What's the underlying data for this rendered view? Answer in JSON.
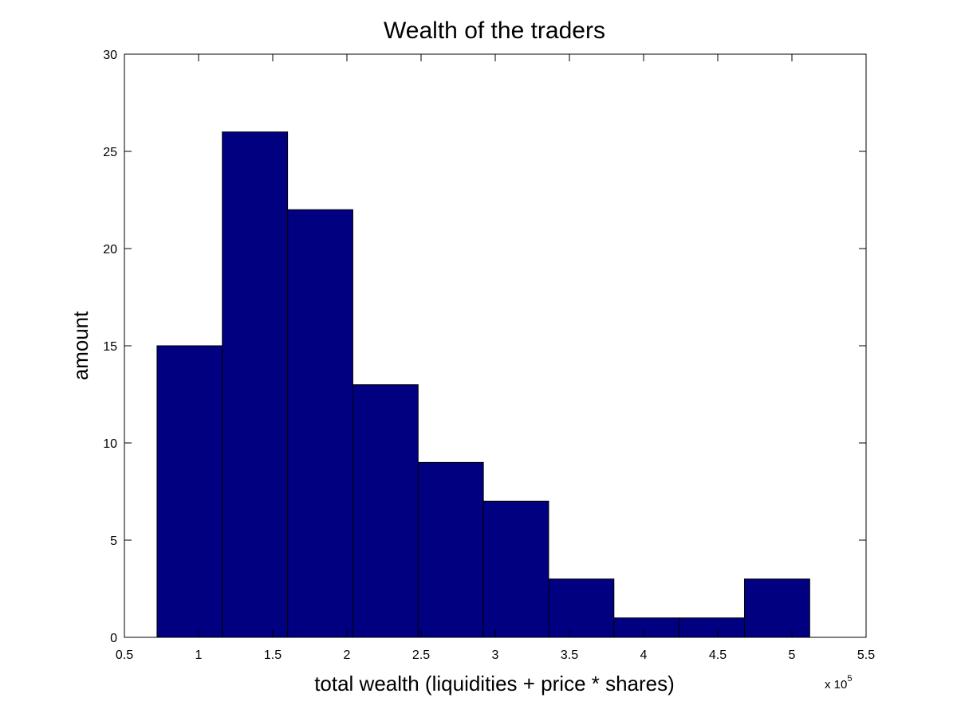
{
  "chart_data": {
    "type": "bar",
    "title": "Wealth of the traders",
    "xlabel": "total wealth (liquidities + price * shares)",
    "ylabel": "amount",
    "x_multiplier_prefix": "x 10",
    "x_multiplier_exponent": "5",
    "xlim": [
      0.5,
      5.5
    ],
    "ylim": [
      0,
      30
    ],
    "xticks": [
      0.5,
      1,
      1.5,
      2,
      2.5,
      3,
      3.5,
      4,
      4.5,
      5,
      5.5
    ],
    "xtick_labels": [
      "0.5",
      "1",
      "1.5",
      "2",
      "2.5",
      "3",
      "3.5",
      "4",
      "4.5",
      "5",
      "5.5"
    ],
    "yticks": [
      0,
      5,
      10,
      15,
      20,
      25,
      30
    ],
    "ytick_labels": [
      "0",
      "5",
      "10",
      "15",
      "20",
      "25",
      "30"
    ],
    "bin_edges": [
      0.72,
      1.16,
      1.6,
      2.04,
      2.48,
      2.92,
      3.36,
      3.8,
      4.24,
      4.68,
      5.12
    ],
    "values": [
      15,
      26,
      22,
      13,
      9,
      7,
      3,
      1,
      1,
      3
    ],
    "bar_color": "#000080",
    "bar_edge_color": "#000000",
    "grid": false,
    "legend": "none"
  }
}
